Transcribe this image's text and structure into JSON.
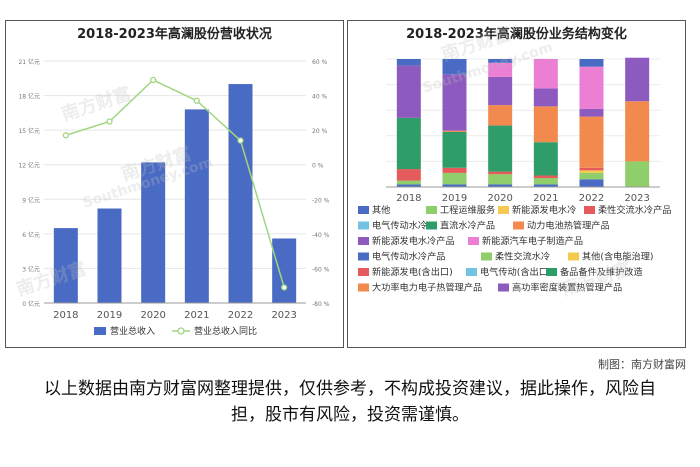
{
  "left": {
    "title": "2018-2023年高澜股份营收状况",
    "chart_data": {
      "type": "bar",
      "categories": [
        "2018",
        "2019",
        "2020",
        "2021",
        "2022",
        "2023"
      ],
      "series": [
        {
          "name": "营业总收入",
          "type": "bar",
          "axis": "left",
          "values": [
            6.5,
            8.2,
            12.2,
            16.8,
            19.0,
            5.6
          ]
        },
        {
          "name": "营业总收入同比",
          "type": "line",
          "axis": "right",
          "values": [
            17,
            25,
            49,
            37,
            14,
            -71
          ]
        }
      ],
      "left_axis": {
        "min": 0,
        "max": 21,
        "ticks": [
          "0 亿元",
          "3 亿元",
          "6 亿元",
          "9 亿元",
          "12 亿元",
          "15 亿元",
          "18 亿元",
          "21 亿元"
        ]
      },
      "right_axis": {
        "min": -80,
        "max": 60,
        "ticks": [
          "-80 %",
          "-60 %",
          "-40 %",
          "-20 %",
          "0 %",
          "20 %",
          "40 %",
          "60 %"
        ]
      },
      "grid": true,
      "legend_position": "bottom",
      "colors": {
        "bar": "#4a6bc4",
        "line": "#9ed680"
      }
    }
  },
  "right": {
    "title": "2018-2023年高澜股份业务结构变化",
    "chart_data": {
      "type": "bar",
      "stacked": true,
      "categories": [
        "2018",
        "2019",
        "2020",
        "2021",
        "2022",
        "2023"
      ],
      "ylim": [
        0,
        100
      ],
      "series": [
        {
          "name": "其他",
          "color": "#4a6bc4",
          "values": [
            2,
            2,
            2,
            2,
            6,
            0
          ]
        },
        {
          "name": "工程运维服务",
          "color": "#8fce6a",
          "values": [
            3,
            9,
            8,
            5,
            5,
            20
          ]
        },
        {
          "name": "新能源发电水冷",
          "color": "#f3c94f",
          "values": [
            0,
            0,
            0,
            0,
            2,
            0
          ]
        },
        {
          "name": "柔性交流水冷产品",
          "color": "#e55b5b",
          "values": [
            9,
            4,
            2,
            2,
            2,
            0
          ]
        },
        {
          "name": "电气传动水冷",
          "color": "#74c3e3",
          "values": [
            0,
            0,
            0,
            0,
            0,
            0
          ]
        },
        {
          "name": "直流水冷产品",
          "color": "#2e9d6a",
          "values": [
            40,
            28,
            36,
            26,
            0,
            0
          ]
        },
        {
          "name": "动力电池热管理产品",
          "color": "#f28a4f",
          "values": [
            0,
            1,
            16,
            28,
            40,
            47
          ]
        },
        {
          "name": "新能源发电水冷产品",
          "color": "#8d5bbf",
          "values": [
            41,
            44,
            22,
            14,
            6,
            34
          ]
        },
        {
          "name": "新能源汽车电子制造产品",
          "color": "#ea7fd4",
          "values": [
            0,
            0,
            11,
            23,
            33,
            0
          ]
        },
        {
          "name": "电气传动水冷产品",
          "color": "#4a6bc4",
          "values": [
            5,
            12,
            3,
            0,
            6,
            0
          ]
        },
        {
          "name": "柔性交流水冷",
          "color": "#8fce6a",
          "values": [
            0,
            0,
            0,
            0,
            0,
            0
          ]
        },
        {
          "name": "其他(含电能治理)",
          "color": "#f3c94f",
          "values": [
            0,
            0,
            0,
            0,
            0,
            0
          ]
        },
        {
          "name": "新能源发电(含出口)",
          "color": "#e55b5b",
          "values": [
            0,
            0,
            0,
            0,
            0,
            0
          ]
        },
        {
          "name": "电气传动(含出口)",
          "color": "#74c3e3",
          "values": [
            0,
            0,
            0,
            0,
            0,
            0
          ]
        },
        {
          "name": "备品备件及维护改造",
          "color": "#2e9d6a",
          "values": [
            0,
            0,
            0,
            0,
            0,
            0
          ]
        },
        {
          "name": "大功率电力电子热管理产品",
          "color": "#f28a4f",
          "values": [
            0,
            0,
            0,
            0,
            0,
            0
          ]
        },
        {
          "name": "高功率密度装置热管理产品",
          "color": "#8d5bbf",
          "values": [
            0,
            0,
            0,
            0,
            0,
            0
          ]
        }
      ],
      "grid": true,
      "legend_position": "bottom"
    }
  },
  "credit": "制图：南方财富网",
  "disclaimer": "以上数据由南方财富网整理提供，仅供参考，不构成投资建议，据此操作，风险自担，股市有风险，投资需谨慎。",
  "watermark": {
    "cn": "南方财富",
    "en": "Southmoney.com"
  }
}
